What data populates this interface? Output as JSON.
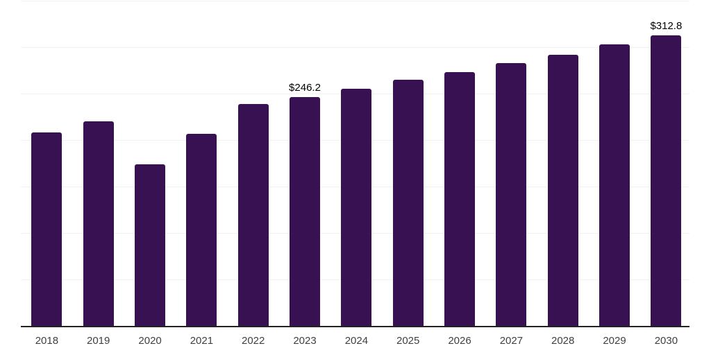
{
  "chart_data": {
    "type": "bar",
    "title": "",
    "xlabel": "",
    "ylabel": "",
    "categories": [
      "2018",
      "2019",
      "2020",
      "2021",
      "2022",
      "2023",
      "2024",
      "2025",
      "2026",
      "2027",
      "2028",
      "2029",
      "2030"
    ],
    "values": [
      208,
      220,
      174,
      207,
      239,
      246.2,
      255,
      265,
      273,
      283,
      292,
      303,
      312.8
    ],
    "data_labels": [
      "",
      "",
      "",
      "",
      "",
      "$246.2",
      "",
      "",
      "",
      "",
      "",
      "",
      "$312.8"
    ],
    "ylim": [
      0,
      350
    ],
    "gridline_step": 50,
    "grid": "horizontal-only",
    "y_tick_labels_visible": false,
    "legend": "none",
    "colors": {
      "bar": "#381153",
      "gridline": "#f2f2f2",
      "axis_line": "#222222",
      "x_tick_label": "#404040",
      "data_label": "#000000",
      "background": "#ffffff"
    }
  }
}
